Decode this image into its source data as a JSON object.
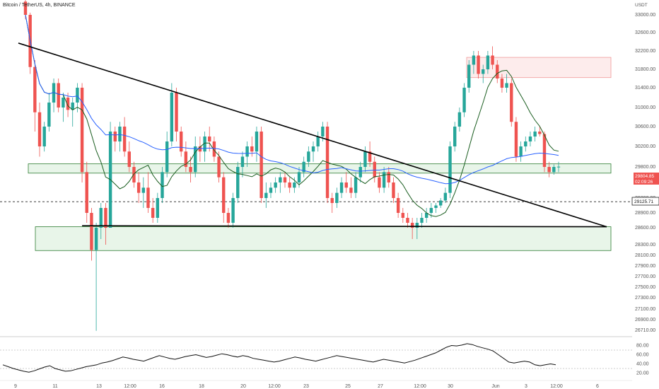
{
  "header": {
    "title": "Bitcoin / TetherUS, 4h, BINANCE",
    "currency": "USDT"
  },
  "price_tags": {
    "last_price": "29804.85",
    "countdown": "02:09:26",
    "level_label": "29125.71"
  },
  "colors": {
    "up": "#26a69a",
    "down": "#ef5350",
    "ma_blue": "#2962ff",
    "ma_green": "#1b5e20",
    "support_fill": "#e8f5e9",
    "support_border": "#2e7d32",
    "resistance_fill": "#fdecec",
    "resistance_border": "#ef9a9a"
  },
  "chart_data": [
    {
      "type": "candlestick",
      "title": "Bitcoin / TetherUS, 4h, BINANCE",
      "y_axis_ticks": [
        "33000.00",
        "32600.00",
        "32200.00",
        "31800.00",
        "31400.00",
        "31000.00",
        "30600.00",
        "30200.00",
        "29800.00",
        "29200.00",
        "28900.00",
        "28600.00",
        "28300.00",
        "28100.00",
        "27900.00",
        "27700.00",
        "27500.00",
        "27300.00",
        "27100.00",
        "26900.00",
        "26710.00"
      ],
      "x_axis_ticks": [
        "9",
        "11",
        "13",
        "12:00",
        "16",
        "18",
        "20",
        "12:00",
        "23",
        "25",
        "27",
        "12:00",
        "30",
        "Jun",
        "3",
        "12:00",
        "6"
      ],
      "overlays": {
        "horizontal_level": 29125.71,
        "support_zone_upper": [
          29680,
          29860
        ],
        "support_zone_lower": [
          28190,
          28620
        ],
        "resistance_zone": [
          31620,
          32060
        ],
        "descending_trendline": [
          [
            0,
            32370
          ],
          [
            103,
            28620
          ]
        ],
        "horizontal_trendline": [
          [
            12,
            28640
          ],
          [
            103,
            28620
          ]
        ]
      },
      "candles_ohlc": [
        [
          33300,
          33400,
          32900,
          33000
        ],
        [
          33000,
          33050,
          31700,
          31850
        ],
        [
          31850,
          32000,
          30500,
          30900
        ],
        [
          30900,
          31100,
          30000,
          30200
        ],
        [
          30200,
          30700,
          30100,
          30600
        ],
        [
          30600,
          31300,
          30500,
          31100
        ],
        [
          31100,
          31600,
          30900,
          31500
        ],
        [
          31500,
          31600,
          30900,
          31000
        ],
        [
          31000,
          31300,
          30700,
          31200
        ],
        [
          31200,
          31300,
          30800,
          30950
        ],
        [
          30950,
          31200,
          30600,
          31100
        ],
        [
          31100,
          31500,
          30900,
          31400
        ],
        [
          31400,
          31500,
          29500,
          29700
        ],
        [
          29700,
          29900,
          28700,
          28900
        ],
        [
          28900,
          29000,
          28000,
          28200
        ],
        [
          28200,
          28700,
          26700,
          28600
        ],
        [
          28600,
          29100,
          28400,
          29000
        ],
        [
          29000,
          29100,
          28300,
          28600
        ],
        [
          28600,
          30700,
          28600,
          30500
        ],
        [
          30500,
          30600,
          30100,
          30300
        ],
        [
          30300,
          30700,
          30100,
          30600
        ],
        [
          30600,
          30800,
          30000,
          30100
        ],
        [
          30100,
          30300,
          29700,
          29800
        ],
        [
          29800,
          29900,
          29400,
          29500
        ],
        [
          29500,
          29700,
          29100,
          29300
        ],
        [
          29300,
          29600,
          29000,
          29400
        ],
        [
          29400,
          29700,
          28900,
          29000
        ],
        [
          29000,
          29200,
          28700,
          28800
        ],
        [
          28800,
          29300,
          28700,
          29200
        ],
        [
          29200,
          29800,
          29100,
          29700
        ],
        [
          29700,
          30500,
          29600,
          30300
        ],
        [
          30300,
          31500,
          30200,
          31300
        ],
        [
          31300,
          31400,
          30300,
          30500
        ],
        [
          30500,
          30600,
          30000,
          30100
        ],
        [
          30100,
          30300,
          29700,
          29800
        ],
        [
          29800,
          30000,
          29500,
          29700
        ],
        [
          29700,
          30400,
          29600,
          30200
        ],
        [
          30200,
          30400,
          29900,
          30100
        ],
        [
          30100,
          30500,
          29900,
          30400
        ],
        [
          30400,
          30600,
          30100,
          30300
        ],
        [
          30300,
          30400,
          29900,
          30000
        ],
        [
          30000,
          30100,
          29500,
          29600
        ],
        [
          29600,
          29700,
          28700,
          28900
        ],
        [
          28900,
          29000,
          28600,
          28700
        ],
        [
          28700,
          29300,
          28600,
          29200
        ],
        [
          29200,
          29900,
          29100,
          29800
        ],
        [
          29800,
          30100,
          29600,
          30000
        ],
        [
          30000,
          30300,
          29800,
          30200
        ],
        [
          30200,
          30400,
          30000,
          30100
        ],
        [
          30100,
          30600,
          29900,
          30500
        ],
        [
          30500,
          30600,
          29100,
          29200
        ],
        [
          29200,
          29500,
          29000,
          29300
        ],
        [
          29300,
          29500,
          29200,
          29400
        ],
        [
          29400,
          29600,
          29300,
          29500
        ],
        [
          29500,
          29700,
          29300,
          29600
        ],
        [
          29600,
          29700,
          29400,
          29500
        ],
        [
          29500,
          29600,
          29300,
          29400
        ],
        [
          29400,
          29600,
          29300,
          29500
        ],
        [
          29500,
          29800,
          29400,
          29700
        ],
        [
          29700,
          30000,
          29600,
          29900
        ],
        [
          29900,
          30200,
          29800,
          30100
        ],
        [
          30100,
          30300,
          29900,
          30200
        ],
        [
          30200,
          30500,
          30100,
          30400
        ],
        [
          30400,
          30700,
          30300,
          30600
        ],
        [
          30600,
          30700,
          29100,
          29200
        ],
        [
          29200,
          29300,
          28900,
          29100
        ],
        [
          29100,
          29400,
          29000,
          29300
        ],
        [
          29300,
          29600,
          29200,
          29500
        ],
        [
          29500,
          29700,
          29300,
          29400
        ],
        [
          29400,
          29600,
          29200,
          29300
        ],
        [
          29300,
          29700,
          29200,
          29600
        ],
        [
          29600,
          29900,
          29500,
          29800
        ],
        [
          29800,
          30200,
          29700,
          30100
        ],
        [
          30100,
          30300,
          29800,
          29900
        ],
        [
          29900,
          30000,
          29500,
          29600
        ],
        [
          29600,
          29700,
          29300,
          29400
        ],
        [
          29400,
          29800,
          29300,
          29700
        ],
        [
          29700,
          29800,
          29400,
          29500
        ],
        [
          29500,
          29600,
          29100,
          29200
        ],
        [
          29200,
          29300,
          28800,
          28900
        ],
        [
          28900,
          29000,
          28700,
          28800
        ],
        [
          28800,
          28900,
          28600,
          28700
        ],
        [
          28700,
          28800,
          28400,
          28600
        ],
        [
          28600,
          28800,
          28400,
          28700
        ],
        [
          28700,
          28900,
          28600,
          28800
        ],
        [
          28800,
          29000,
          28700,
          28900
        ],
        [
          28900,
          29100,
          28800,
          29000
        ],
        [
          29000,
          29100,
          28900,
          29050
        ],
        [
          29050,
          29200,
          29000,
          29150
        ],
        [
          29150,
          29400,
          29100,
          29300
        ],
        [
          29300,
          30300,
          29200,
          30200
        ],
        [
          30200,
          30700,
          30100,
          30600
        ],
        [
          30600,
          31000,
          30500,
          30900
        ],
        [
          30900,
          31500,
          30800,
          31400
        ],
        [
          31400,
          32000,
          31300,
          31900
        ],
        [
          31900,
          32200,
          31700,
          32100
        ],
        [
          32100,
          32200,
          31600,
          31700
        ],
        [
          31700,
          31900,
          31500,
          31800
        ],
        [
          31800,
          32200,
          31700,
          32100
        ],
        [
          32100,
          32300,
          31800,
          31900
        ],
        [
          31900,
          32000,
          31500,
          31600
        ],
        [
          31600,
          31700,
          31300,
          31400
        ],
        [
          31400,
          31700,
          31300,
          31500
        ],
        [
          31500,
          31600,
          30600,
          30700
        ],
        [
          30700,
          30800,
          29900,
          30000
        ],
        [
          30000,
          30300,
          29900,
          30200
        ],
        [
          30200,
          30400,
          30100,
          30300
        ],
        [
          30300,
          30500,
          30200,
          30400
        ],
        [
          30400,
          30600,
          30300,
          30500
        ],
        [
          30500,
          30600,
          30400,
          30450
        ],
        [
          30450,
          30500,
          29700,
          29800
        ],
        [
          29800,
          29900,
          29600,
          29700
        ],
        [
          29700,
          29850,
          29650,
          29800
        ],
        [
          29800,
          29900,
          29700,
          29805
        ]
      ]
    },
    {
      "type": "line",
      "title": "",
      "y_axis_ticks": [
        "80.00",
        "60.00",
        "40.00",
        "20.00"
      ],
      "ylim": [
        10,
        90
      ],
      "values": [
        38,
        34,
        30,
        27,
        24,
        22,
        25,
        29,
        33,
        36,
        30,
        27,
        24,
        25,
        28,
        31,
        34,
        36,
        38,
        42,
        44,
        47,
        51,
        55,
        53,
        50,
        48,
        46,
        50,
        54,
        58,
        55,
        52,
        50,
        53,
        56,
        58,
        60,
        57,
        54,
        56,
        59,
        62,
        60,
        57,
        55,
        58,
        56,
        52,
        50,
        48,
        46,
        44,
        46,
        49,
        52,
        55,
        53,
        50,
        48,
        46,
        49,
        52,
        55,
        58,
        56,
        54,
        52,
        50,
        48,
        46,
        44,
        47,
        50,
        48,
        46,
        44,
        42,
        45,
        48,
        52,
        56,
        60,
        64,
        70,
        76,
        80,
        79,
        81,
        84,
        82,
        78,
        75,
        72,
        68,
        60,
        52,
        44,
        42,
        44,
        46,
        44,
        38,
        36,
        38,
        40,
        38
      ]
    }
  ]
}
